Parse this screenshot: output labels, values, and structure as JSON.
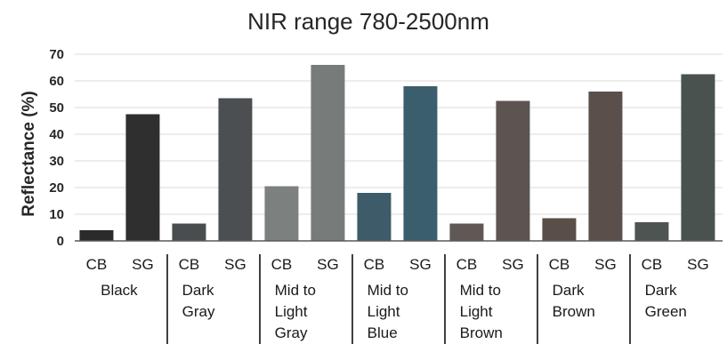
{
  "chart_data": {
    "type": "bar",
    "title": "NIR range 780-2500nm",
    "xlabel": "",
    "ylabel": "Reflectance (%)",
    "ylim": [
      0,
      70
    ],
    "yticks": [
      0,
      10,
      20,
      30,
      40,
      50,
      60,
      70
    ],
    "grid": true,
    "sub_categories": [
      "CB",
      "SG"
    ],
    "groups": [
      {
        "label_lines": [
          "Black"
        ],
        "values": [
          4,
          47.5
        ],
        "colors": [
          "#2b2b2b",
          "#2f2f2f"
        ]
      },
      {
        "label_lines": [
          "Dark",
          "Gray"
        ],
        "values": [
          6.5,
          53.5
        ],
        "colors": [
          "#4a4d4f",
          "#4b4f51"
        ]
      },
      {
        "label_lines": [
          "Mid to",
          "Light",
          "Gray"
        ],
        "values": [
          20.5,
          66
        ],
        "colors": [
          "#7c807e",
          "#777b79"
        ]
      },
      {
        "label_lines": [
          "Mid to",
          "Light",
          "Blue"
        ],
        "values": [
          18,
          58
        ],
        "colors": [
          "#3d5b68",
          "#3b5e6d"
        ]
      },
      {
        "label_lines": [
          "Mid to",
          "Light",
          "Brown"
        ],
        "values": [
          6.5,
          52.5
        ],
        "colors": [
          "#5f5855",
          "#5c5451"
        ]
      },
      {
        "label_lines": [
          "Dark",
          "Brown"
        ],
        "values": [
          8.5,
          56
        ],
        "colors": [
          "#5a4e48",
          "#5a4f4b"
        ]
      },
      {
        "label_lines": [
          "Dark",
          "Green"
        ],
        "values": [
          7,
          62.5
        ],
        "colors": [
          "#4d5451",
          "#4a524f"
        ]
      }
    ]
  }
}
